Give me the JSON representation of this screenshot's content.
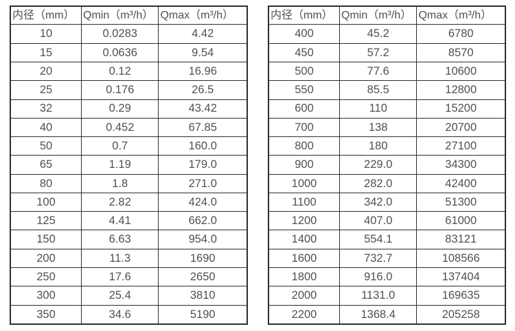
{
  "colors": {
    "background": "#ffffff",
    "border": "#2d2d2d",
    "text": "#505050"
  },
  "tables": [
    {
      "headers": [
        "内径（mm）",
        "Qmin（m³/h）",
        "Qmax（m³/h）"
      ],
      "rows": [
        [
          "10",
          "0.0283",
          "4.42"
        ],
        [
          "15",
          "0.0636",
          "9.54"
        ],
        [
          "20",
          "0.12",
          "16.96"
        ],
        [
          "25",
          "0.176",
          "26.5"
        ],
        [
          "32",
          "0.29",
          "43.42"
        ],
        [
          "40",
          "0.452",
          "67.85"
        ],
        [
          "50",
          "0.7",
          "160.0"
        ],
        [
          "65",
          "1.19",
          "179.0"
        ],
        [
          "80",
          "1.8",
          "271.0"
        ],
        [
          "100",
          "2.82",
          "424.0"
        ],
        [
          "125",
          "4.41",
          "662.0"
        ],
        [
          "150",
          "6.63",
          "954.0"
        ],
        [
          "200",
          "11.3",
          "1690"
        ],
        [
          "250",
          "17.6",
          "2650"
        ],
        [
          "300",
          "25.4",
          "3810"
        ],
        [
          "350",
          "34.6",
          "5190"
        ]
      ]
    },
    {
      "headers": [
        "内径（mm）",
        "Qmin（m³/h）",
        "Qmax（m³/h）"
      ],
      "rows": [
        [
          "400",
          "45.2",
          "6780"
        ],
        [
          "450",
          "57.2",
          "8570"
        ],
        [
          "500",
          "77.6",
          "10600"
        ],
        [
          "550",
          "85.5",
          "12800"
        ],
        [
          "600",
          "110",
          "15200"
        ],
        [
          "700",
          "138",
          "20700"
        ],
        [
          "800",
          "180",
          "27100"
        ],
        [
          "900",
          "229.0",
          "34300"
        ],
        [
          "1000",
          "282.0",
          "42400"
        ],
        [
          "1100",
          "342.0",
          "51300"
        ],
        [
          "1200",
          "407.0",
          "61000"
        ],
        [
          "1400",
          "554.1",
          "83121"
        ],
        [
          "1600",
          "732.7",
          "108566"
        ],
        [
          "1800",
          "916.0",
          "137404"
        ],
        [
          "2000",
          "1131.0",
          "169635"
        ],
        [
          "2200",
          "1368.4",
          "205258"
        ]
      ]
    }
  ]
}
